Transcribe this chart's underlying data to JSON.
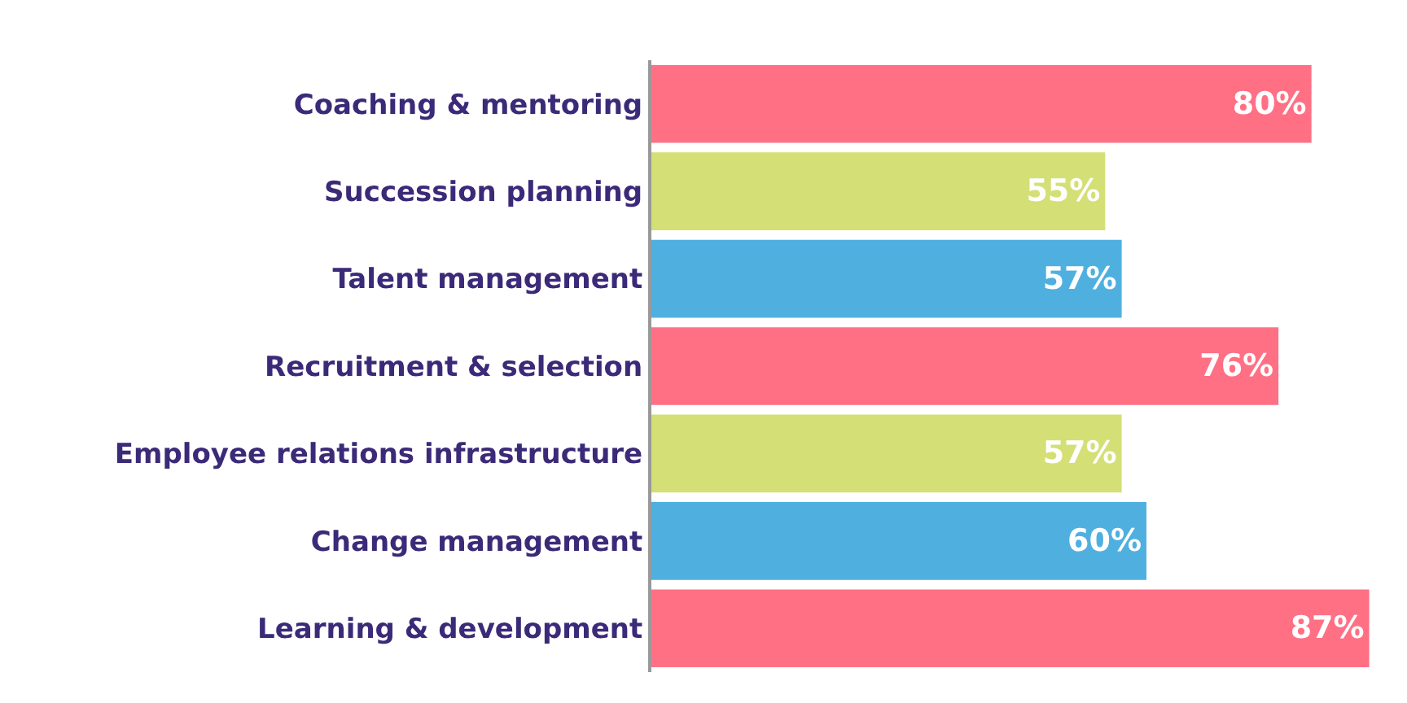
{
  "chart_data": {
    "type": "bar",
    "orientation": "horizontal",
    "categories": [
      "Coaching & mentoring",
      "Succession planning",
      "Talent management",
      "Recruitment & selection",
      "Employee relations infrastructure",
      "Change management",
      "Learning & development"
    ],
    "values": [
      80,
      55,
      57,
      76,
      57,
      60,
      87
    ],
    "colors": [
      "#ff7085",
      "#d4df76",
      "#4fb0e0",
      "#ff7085",
      "#d4df76",
      "#4fb0e0",
      "#ff7085"
    ],
    "value_labels": [
      "80%",
      "55%",
      "57%",
      "76%",
      "57%",
      "60%",
      "87%"
    ],
    "grid": false,
    "legend": false
  }
}
